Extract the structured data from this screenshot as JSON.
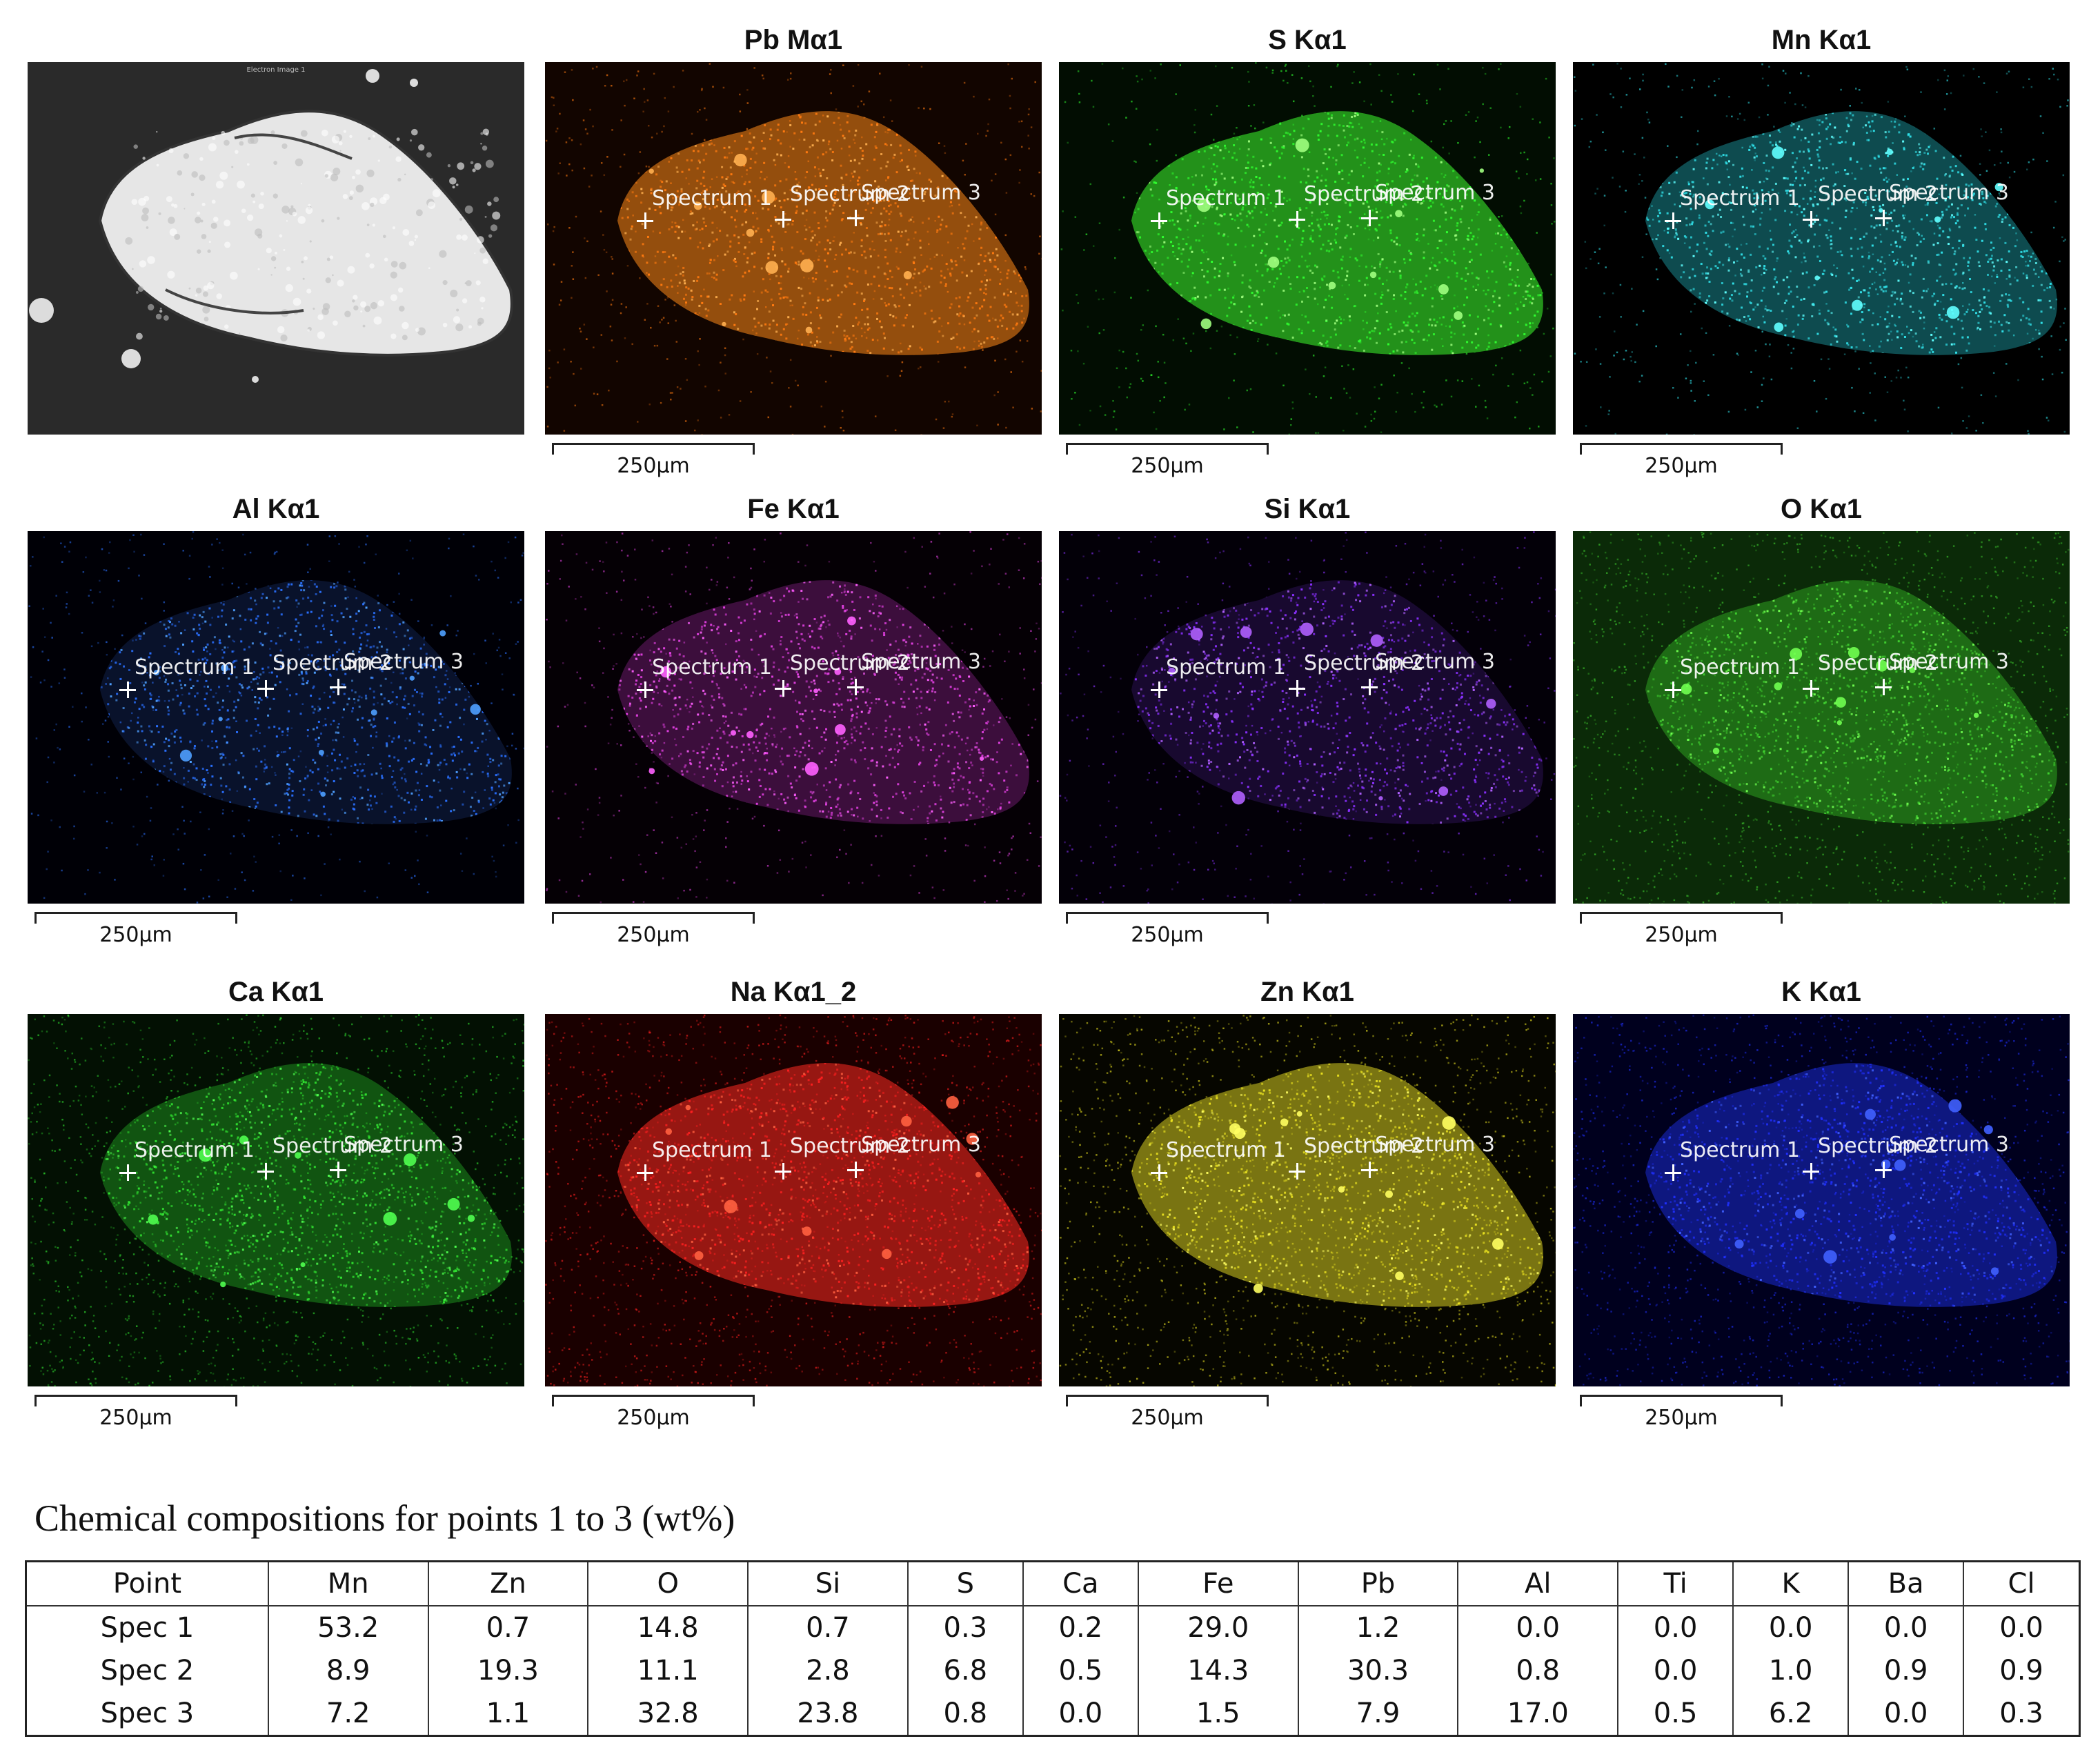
{
  "panels": [
    {
      "id": "electron",
      "title": "",
      "base": "#050505",
      "dot": "#d8d8d8",
      "particle": "#f2f2f2",
      "glow": "#ffffff",
      "markers": false,
      "header": "Electron Image 1"
    },
    {
      "id": "pb",
      "title": "Pb Mα1",
      "base": "#120500",
      "dot": "#ff7a10",
      "particle": "#ff8a18",
      "glow": "#ffb050",
      "markers": true
    },
    {
      "id": "s",
      "title": "S Kα1",
      "base": "#020d02",
      "dot": "#30ff30",
      "particle": "#40ff30",
      "glow": "#a0ff80",
      "markers": true
    },
    {
      "id": "mn",
      "title": "Mn Kα1",
      "base": "#000000",
      "dot": "#30e0e8",
      "particle": "#1a8890",
      "glow": "#60ffff",
      "markers": true
    },
    {
      "id": "al",
      "title": "Al Kα1",
      "base": "#000006",
      "dot": "#2a70ff",
      "particle": "#10204a",
      "glow": "#4fa0ff",
      "markers": true
    },
    {
      "id": "fe",
      "title": "Fe Kα1",
      "base": "#050005",
      "dot": "#e040e0",
      "particle": "#6a1a6a",
      "glow": "#ff60ff",
      "markers": true
    },
    {
      "id": "si",
      "title": "Si Kα1",
      "base": "#030008",
      "dot": "#8a30ff",
      "particle": "#2a1050",
      "glow": "#b060ff",
      "markers": true
    },
    {
      "id": "o",
      "title": "O Kα1",
      "base": "#0b2a08",
      "dot": "#40d030",
      "particle": "#30a020",
      "glow": "#70ff50",
      "markers": true
    },
    {
      "id": "ca",
      "title": "Ca Kα1",
      "base": "#031003",
      "dot": "#30e030",
      "particle": "#1e8c1e",
      "glow": "#50ff50",
      "markers": true
    },
    {
      "id": "na",
      "title": "Na Kα1_2",
      "base": "#1a0000",
      "dot": "#ff2020",
      "particle": "#ff2a20",
      "glow": "#ff6040",
      "markers": true
    },
    {
      "id": "zn",
      "title": "Zn Kα1",
      "base": "#060600",
      "dot": "#e8e020",
      "particle": "#d8d020",
      "glow": "#ffff60",
      "markers": true
    },
    {
      "id": "k",
      "title": "K Kα1",
      "base": "#00001e",
      "dot": "#2030ff",
      "particle": "#1a2ad0",
      "glow": "#4060ff",
      "markers": true
    }
  ],
  "scale_label": "250µm",
  "markers": {
    "spectrum1": "Spectrum 1",
    "spectrum2": "Spectrum 2",
    "spectrum3": "Spectrum 3"
  },
  "table": {
    "caption": "Chemical compositions for points 1 to 3 (wt%)",
    "headers": [
      "Point",
      "Mn",
      "Zn",
      "O",
      "Si",
      "S",
      "Ca",
      "Fe",
      "Pb",
      "Al",
      "Ti",
      "K",
      "Ba",
      "Cl"
    ],
    "rows": [
      [
        "Spec 1",
        "53.2",
        "0.7",
        "14.8",
        "0.7",
        "0.3",
        "0.2",
        "29.0",
        "1.2",
        "0.0",
        "0.0",
        "0.0",
        "0.0",
        "0.0"
      ],
      [
        "Spec 2",
        "8.9",
        "19.3",
        "11.1",
        "2.8",
        "6.8",
        "0.5",
        "14.3",
        "30.3",
        "0.8",
        "0.0",
        "1.0",
        "0.9",
        "0.9"
      ],
      [
        "Spec 3",
        "7.2",
        "1.1",
        "32.8",
        "23.8",
        "0.8",
        "0.0",
        "1.5",
        "7.9",
        "17.0",
        "0.5",
        "6.2",
        "0.0",
        "0.3"
      ]
    ]
  }
}
